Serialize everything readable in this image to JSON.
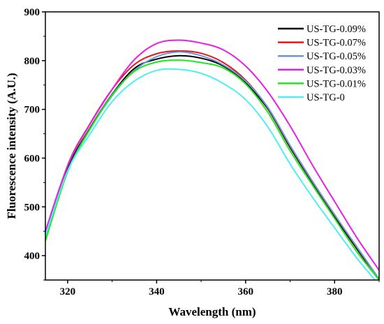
{
  "chart_data": {
    "type": "line",
    "xlabel": "Wavelength (nm)",
    "ylabel": "Fluorescence intensity (A.U.)",
    "xlim": [
      315,
      390
    ],
    "ylim": [
      350,
      900
    ],
    "xticks": [
      320,
      340,
      360,
      380
    ],
    "yticks": [
      400,
      500,
      600,
      700,
      800,
      900
    ],
    "grid": false,
    "legend_position": "top-right",
    "x": [
      315,
      320,
      325,
      330,
      335,
      340,
      345,
      350,
      355,
      360,
      365,
      370,
      375,
      380,
      385,
      390
    ],
    "series": [
      {
        "name": "US-TG-0.09%",
        "color": "#000000",
        "values": [
          435,
          578,
          661,
          731,
          784,
          803,
          810,
          805,
          789,
          754,
          701,
          622,
          550,
          480,
          414,
          350
        ]
      },
      {
        "name": "US-TG-0.07%",
        "color": "#e8141c",
        "values": [
          436,
          585,
          670,
          741,
          792,
          814,
          820,
          815,
          796,
          760,
          703,
          625,
          552,
          483,
          417,
          350
        ]
      },
      {
        "name": "US-TG-0.05%",
        "color": "#6699d6",
        "values": [
          440,
          574,
          659,
          728,
          780,
          808,
          818,
          810,
          791,
          758,
          704,
          626,
          553,
          484,
          418,
          352
        ]
      },
      {
        "name": "US-TG-0.03%",
        "color": "#e81ee6",
        "values": [
          450,
          584,
          669,
          741,
          802,
          835,
          842,
          836,
          822,
          789,
          736,
          666,
          586,
          511,
          437,
          370
        ]
      },
      {
        "name": "US-TG-0.01%",
        "color": "#1ee81a",
        "values": [
          430,
          572,
          659,
          730,
          778,
          797,
          801,
          796,
          785,
          752,
          694,
          615,
          545,
          476,
          408,
          350
        ]
      },
      {
        "name": "US-TG-0",
        "color": "#4cf0f0",
        "values": [
          440,
          574,
          649,
          716,
          758,
          780,
          782,
          774,
          753,
          720,
          664,
          588,
          520,
          457,
          395,
          340
        ]
      }
    ]
  }
}
